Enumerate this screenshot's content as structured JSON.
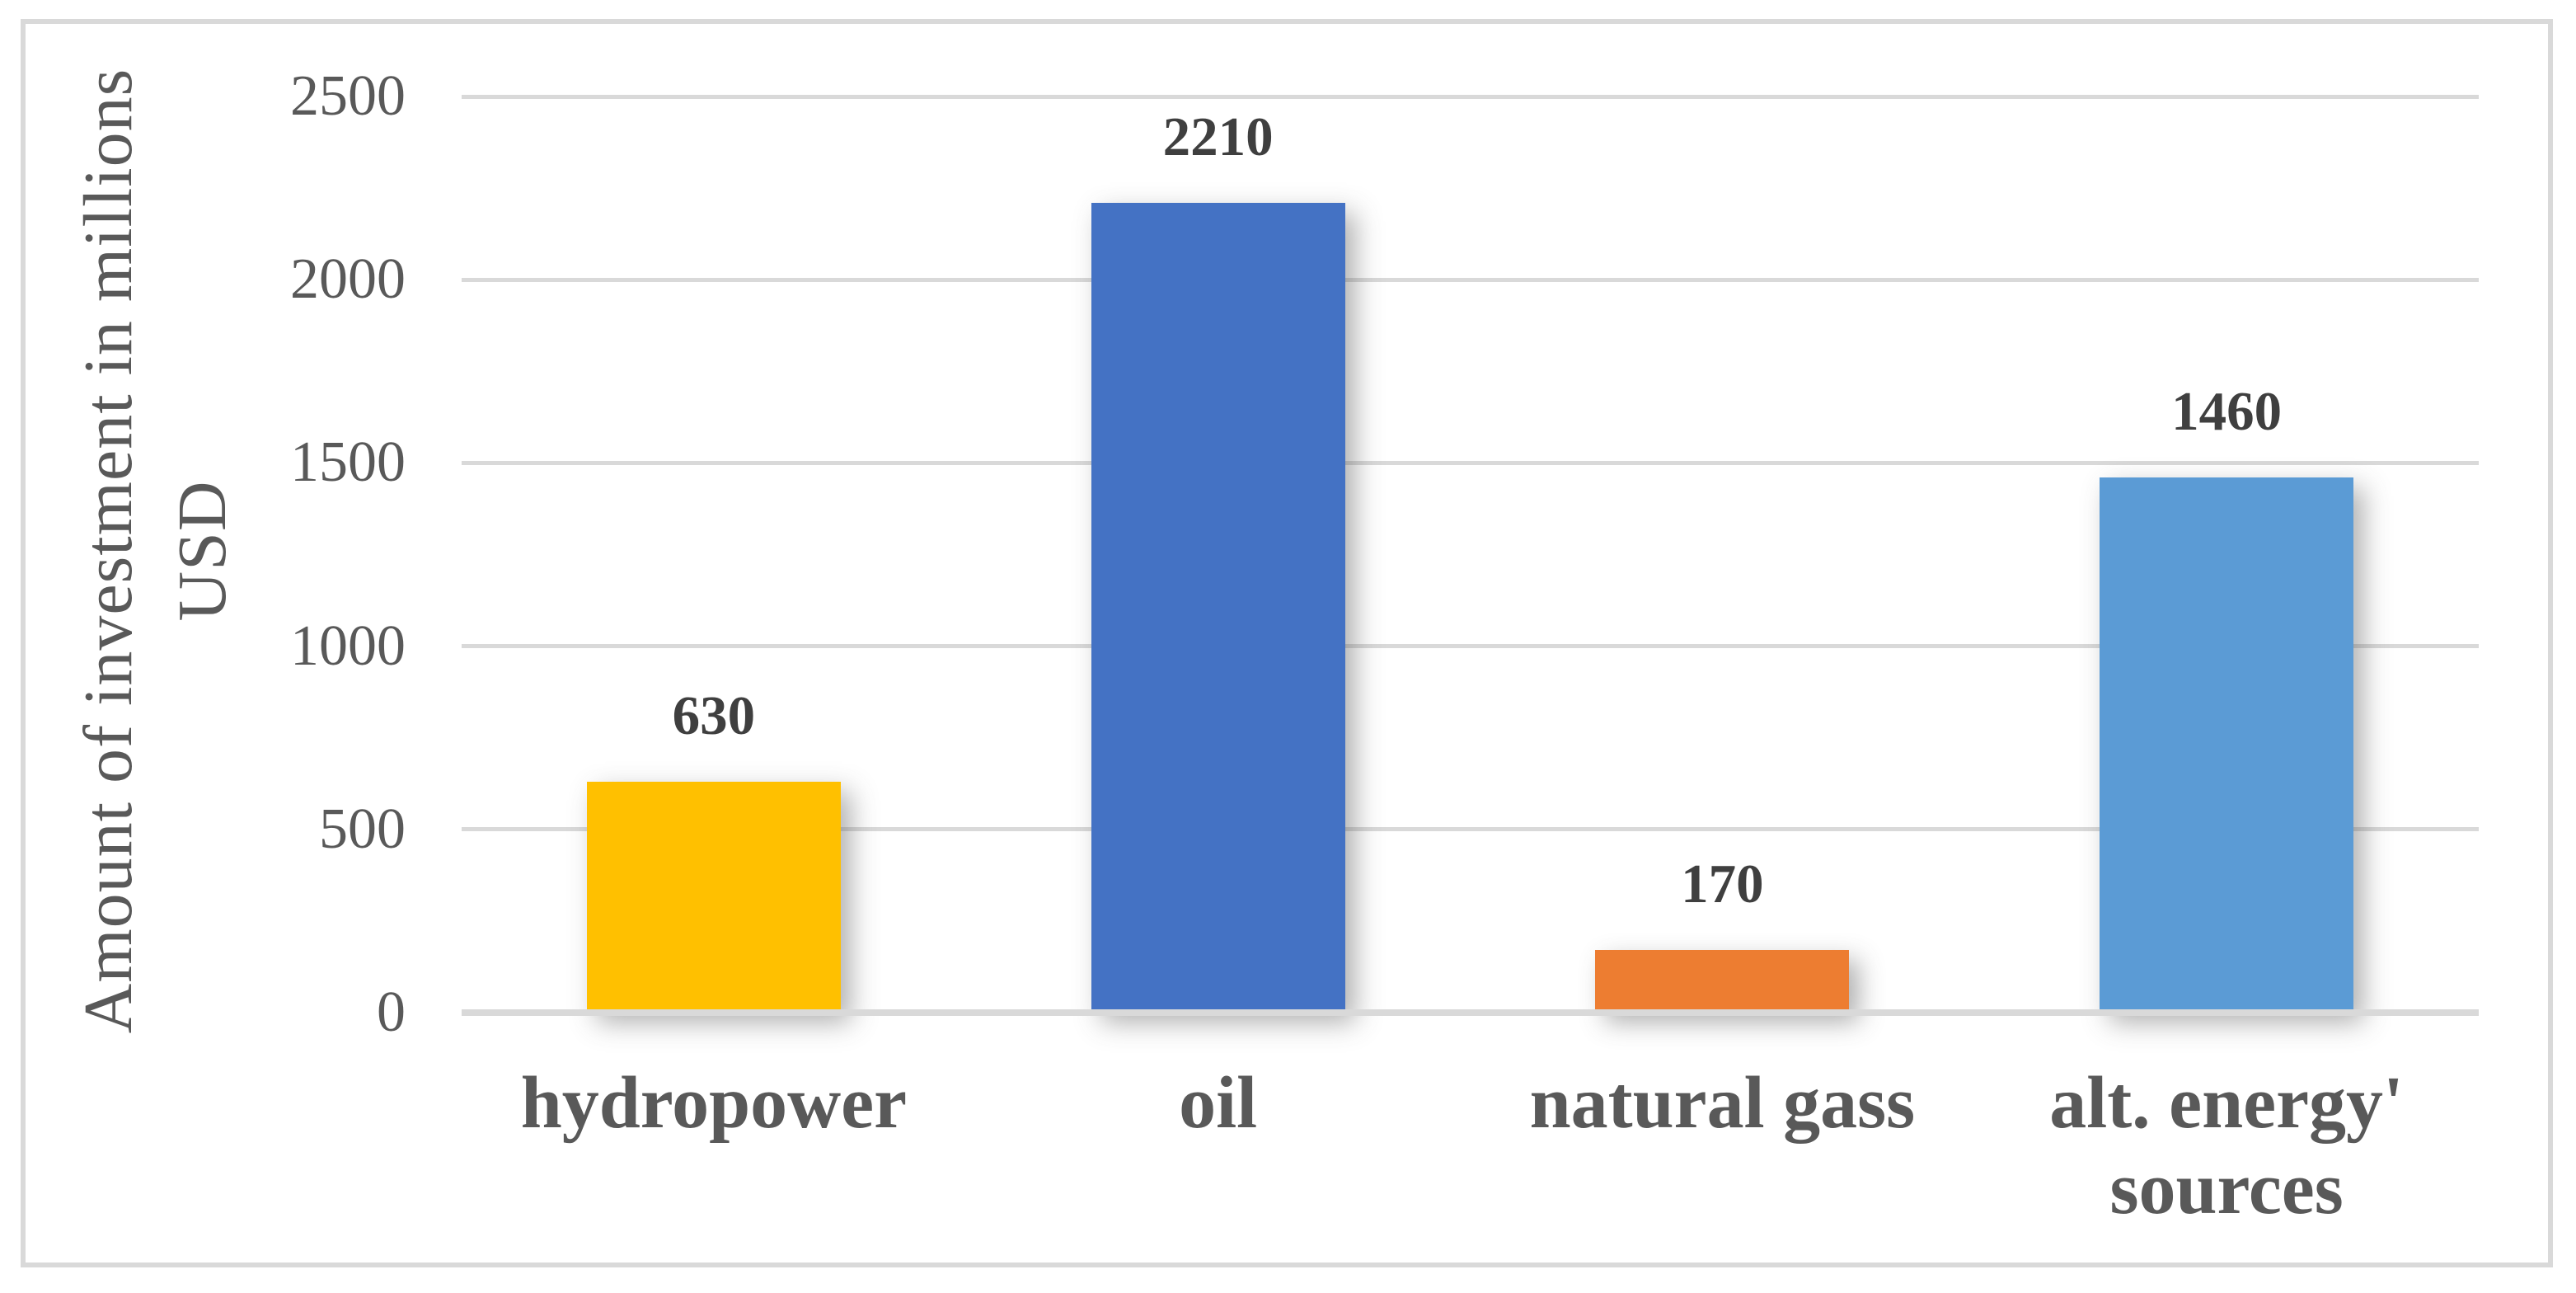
{
  "figure": {
    "background_color": "#FFFFFF",
    "border_color": "#D9D9D9"
  },
  "chart_data": {
    "type": "bar",
    "title": "",
    "categories": [
      "hydropower",
      "oil",
      "natural gass",
      "alt. energy' sources"
    ],
    "category_label_lines": [
      [
        "hydropower"
      ],
      [
        "oil"
      ],
      [
        "natural gass"
      ],
      [
        "alt. energy'",
        "sources"
      ]
    ],
    "values": [
      630,
      2210,
      170,
      1460
    ],
    "data_labels": [
      "630",
      "2210",
      "170",
      "1460"
    ],
    "bar_colors": [
      "#FFC000",
      "#4472C4",
      "#ED7D31",
      "#5B9BD5"
    ],
    "xlabel": "",
    "ylabel": "Amount of investment in millions USD",
    "ylabel_lines": [
      "Amount of investment in millions",
      "USD"
    ],
    "ylim": [
      0,
      2500
    ],
    "yticks": [
      2500,
      2000,
      1500,
      1000,
      500,
      0
    ],
    "ytick_labels": [
      "2500",
      "2000",
      "1500",
      "1000",
      "500",
      "0"
    ],
    "grid": true,
    "gridline_color": "#D9D9D9",
    "axis_text_color": "#595959",
    "data_label_color": "#3F3F3F",
    "legend_position": "none"
  }
}
